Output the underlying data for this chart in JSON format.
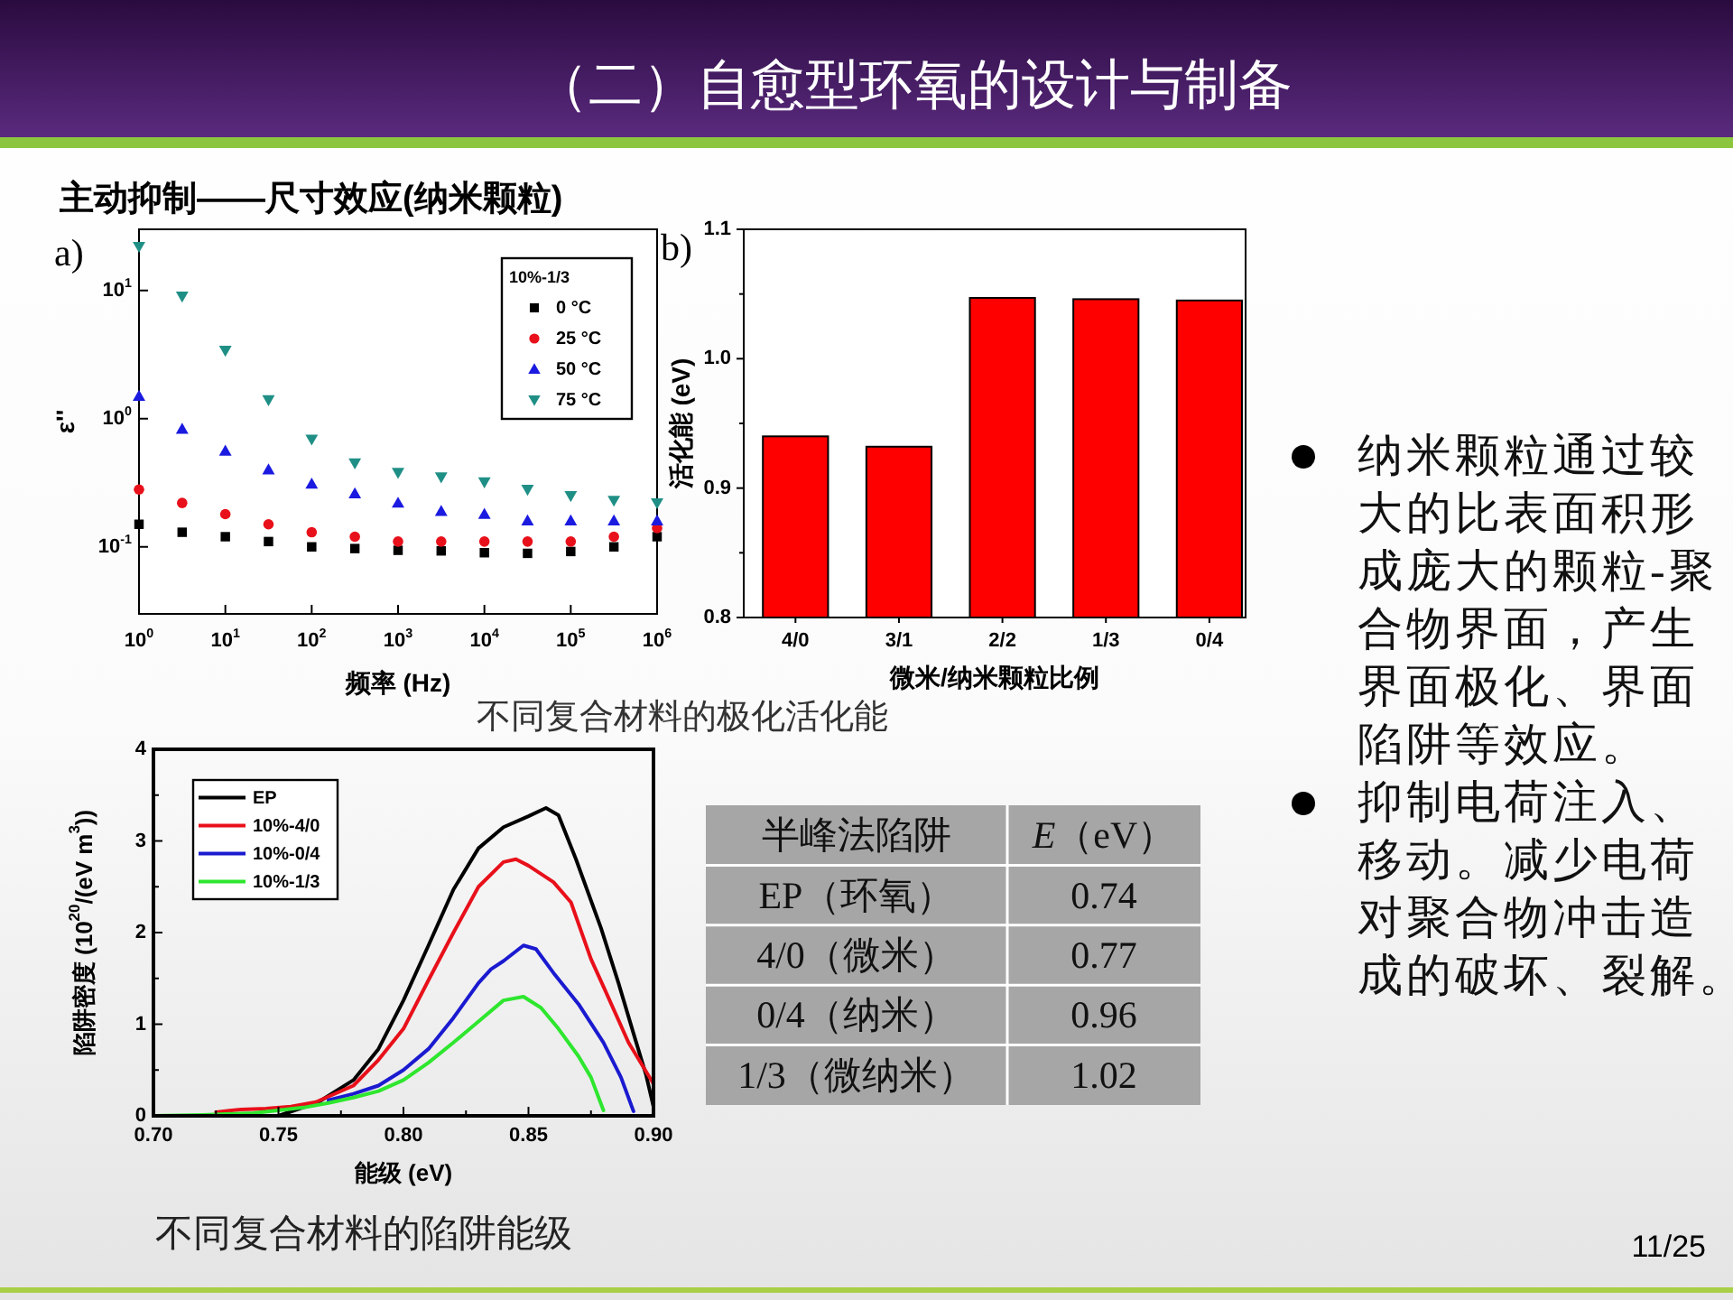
{
  "chart_data": [
    {
      "type": "other",
      "title": "（二）自愈型环氧的设计与制备",
      "subtitle": "主动抑制——尺寸效应(纳米颗粒)",
      "annotations": [
        "11/25"
      ]
    },
    {
      "type": "scatter",
      "annotations": [
        "a)"
      ],
      "xlabel": "频率 (Hz)",
      "ylabel": "ε''",
      "legend_title": "10%-1/3",
      "legend": "top right",
      "log": "xy",
      "xlim": [
        1,
        1000000
      ],
      "ylim": [
        0.03,
        30
      ],
      "xticks": [
        {
          "value": 1,
          "label": "10$^{0}$"
        },
        {
          "value": 10,
          "label": "10$^{1}$"
        },
        {
          "value": 100,
          "label": "10$^{2}$"
        },
        {
          "value": 1000,
          "label": "10$^{3}$"
        },
        {
          "value": 10000,
          "label": "10$^{4}$"
        },
        {
          "value": 100000,
          "label": "10$^{5}$"
        },
        {
          "value": 1000000,
          "label": "10$^{6}$"
        }
      ],
      "yticks": [
        {
          "value": 0.1,
          "label": "10$^{-1}$"
        },
        {
          "value": 1,
          "label": "10$^{0}$"
        },
        {
          "value": 10,
          "label": "10$^{1}$"
        }
      ],
      "x": [
        1,
        3.16,
        10,
        31.6,
        100,
        316,
        1000,
        3160,
        10000,
        31600,
        100000,
        316000,
        1000000
      ],
      "series": [
        {
          "name": "0 °C",
          "color": "#000000",
          "marker": "square",
          "values": [
            0.15,
            0.13,
            0.12,
            0.11,
            0.1,
            0.097,
            0.094,
            0.093,
            0.09,
            0.089,
            0.092,
            0.1,
            0.12
          ]
        },
        {
          "name": "25 °C",
          "color": "#e8101a",
          "marker": "circle",
          "values": [
            0.28,
            0.22,
            0.18,
            0.15,
            0.13,
            0.12,
            0.11,
            0.11,
            0.11,
            0.11,
            0.11,
            0.12,
            0.14
          ]
        },
        {
          "name": "50 °C",
          "color": "#1a1ae0",
          "marker": "triangle",
          "values": [
            1.5,
            0.83,
            0.56,
            0.4,
            0.31,
            0.26,
            0.22,
            0.19,
            0.18,
            0.16,
            0.16,
            0.16,
            0.16
          ]
        },
        {
          "name": "75 °C",
          "color": "#1f8f86",
          "marker": "triangle-down",
          "values": [
            22,
            9,
            3.4,
            1.4,
            0.69,
            0.45,
            0.38,
            0.35,
            0.32,
            0.28,
            0.25,
            0.23,
            0.22
          ]
        }
      ]
    },
    {
      "type": "bar",
      "annotations": [
        "b)",
        "不同复合材料的极化活化能"
      ],
      "categories": [
        "4/0",
        "3/1",
        "2/2",
        "1/3",
        "0/4"
      ],
      "values": [
        0.94,
        0.932,
        1.047,
        1.046,
        1.045
      ],
      "color": "#ff0000",
      "xlabel": "微米/纳米颗粒比例",
      "ylabel": "活化能 (eV)",
      "ylim": [
        0.8,
        1.1
      ],
      "yticks": [
        0.8,
        {
          "value": 0.85,
          "label": null
        },
        0.9,
        {
          "value": 0.95,
          "label": null
        },
        {
          "value": 1,
          "label": "1.0"
        },
        {
          "value": 1.05,
          "label": null
        },
        1.1
      ]
    },
    {
      "type": "line",
      "annotations": [
        "不同复合材料的陷阱能级"
      ],
      "xlabel": "能级 (eV)",
      "ylabel": "陷阱密度 (10$^{20}$/(eV m$^{3}$))",
      "legend": "top left",
      "xlim": [
        0.7,
        0.9
      ],
      "ylim": [
        0,
        4
      ],
      "xticks": [
        {
          "value": 0.7,
          "label": "0.70"
        },
        {
          "value": 0.725,
          "label": null
        },
        {
          "value": 0.75,
          "label": "0.75"
        },
        {
          "value": 0.775,
          "label": null
        },
        {
          "value": 0.8,
          "label": "0.80"
        },
        {
          "value": 0.825,
          "label": null
        },
        {
          "value": 0.85,
          "label": "0.85"
        },
        {
          "value": 0.875,
          "label": null
        },
        {
          "value": 0.9,
          "label": "0.90"
        }
      ],
      "yticks": [
        0,
        {
          "value": 0.5,
          "label": null
        },
        1,
        {
          "value": 1.5,
          "label": null
        },
        2,
        {
          "value": 2.5,
          "label": null
        },
        3,
        {
          "value": 3.5,
          "label": null
        },
        4
      ],
      "series": [
        {
          "name": "EP",
          "color": "#000000",
          "x": [
            0.75,
            0.766,
            0.78,
            0.79,
            0.8,
            0.81,
            0.82,
            0.83,
            0.84,
            0.85,
            0.857,
            0.862,
            0.869,
            0.879,
            0.886,
            0.892,
            0.897,
            0.9
          ],
          "values": [
            0,
            0.15,
            0.39,
            0.73,
            1.26,
            1.86,
            2.47,
            2.92,
            3.15,
            3.27,
            3.36,
            3.28,
            2.8,
            2.05,
            1.45,
            0.9,
            0.45,
            0.1
          ]
        },
        {
          "name": "10%-4/0",
          "color": "#e8101a",
          "x": [
            0.725,
            0.735,
            0.745,
            0.755,
            0.765,
            0.78,
            0.79,
            0.8,
            0.81,
            0.82,
            0.83,
            0.84,
            0.845,
            0.85,
            0.86,
            0.867,
            0.875,
            0.88,
            0.89,
            0.9
          ],
          "values": [
            0.04,
            0.07,
            0.08,
            0.1,
            0.15,
            0.33,
            0.61,
            0.95,
            1.48,
            2,
            2.5,
            2.77,
            2.8,
            2.73,
            2.55,
            2.33,
            1.71,
            1.41,
            0.8,
            0.35
          ]
        },
        {
          "name": "10%-0/4",
          "color": "#1a1ad0",
          "x": [
            0.77,
            0.78,
            0.79,
            0.8,
            0.81,
            0.82,
            0.83,
            0.835,
            0.84,
            0.848,
            0.853,
            0.86,
            0.87,
            0.88,
            0.887,
            0.892
          ],
          "values": [
            0.17,
            0.24,
            0.33,
            0.5,
            0.73,
            1.07,
            1.45,
            1.6,
            1.69,
            1.86,
            1.82,
            1.56,
            1.22,
            0.8,
            0.42,
            0.05
          ]
        },
        {
          "name": "10%-1/3",
          "color": "#2ee62e",
          "x": [
            0.7,
            0.72,
            0.74,
            0.76,
            0.77,
            0.78,
            0.79,
            0.8,
            0.81,
            0.82,
            0.83,
            0.84,
            0.848,
            0.855,
            0.862,
            0.87,
            0.875,
            0.88
          ],
          "values": [
            0,
            0.01,
            0.03,
            0.09,
            0.14,
            0.2,
            0.27,
            0.39,
            0.58,
            0.8,
            1.03,
            1.26,
            1.3,
            1.18,
            0.95,
            0.65,
            0.42,
            0.06
          ]
        }
      ]
    },
    {
      "type": "other",
      "xlabel": "半峰法陷阱",
      "ylabel": "*E*（eV）",
      "categories": [
        "EP（环氧）",
        "4/0（微米）",
        "0/4（纳米）",
        "1/3（微纳米）"
      ],
      "values": [
        0.74,
        0.77,
        0.96,
        1.02
      ],
      "data_labels": true
    },
    {
      "type": "other",
      "annotations": [
        "纳米颗粒通过较大的比表面积形成庞大的颗粒-聚合物界面，产生界面极化、界面陷阱等效应。",
        "抑制电荷注入、移动。减少电荷对聚合物冲击造成的破坏、裂解。"
      ]
    }
  ]
}
